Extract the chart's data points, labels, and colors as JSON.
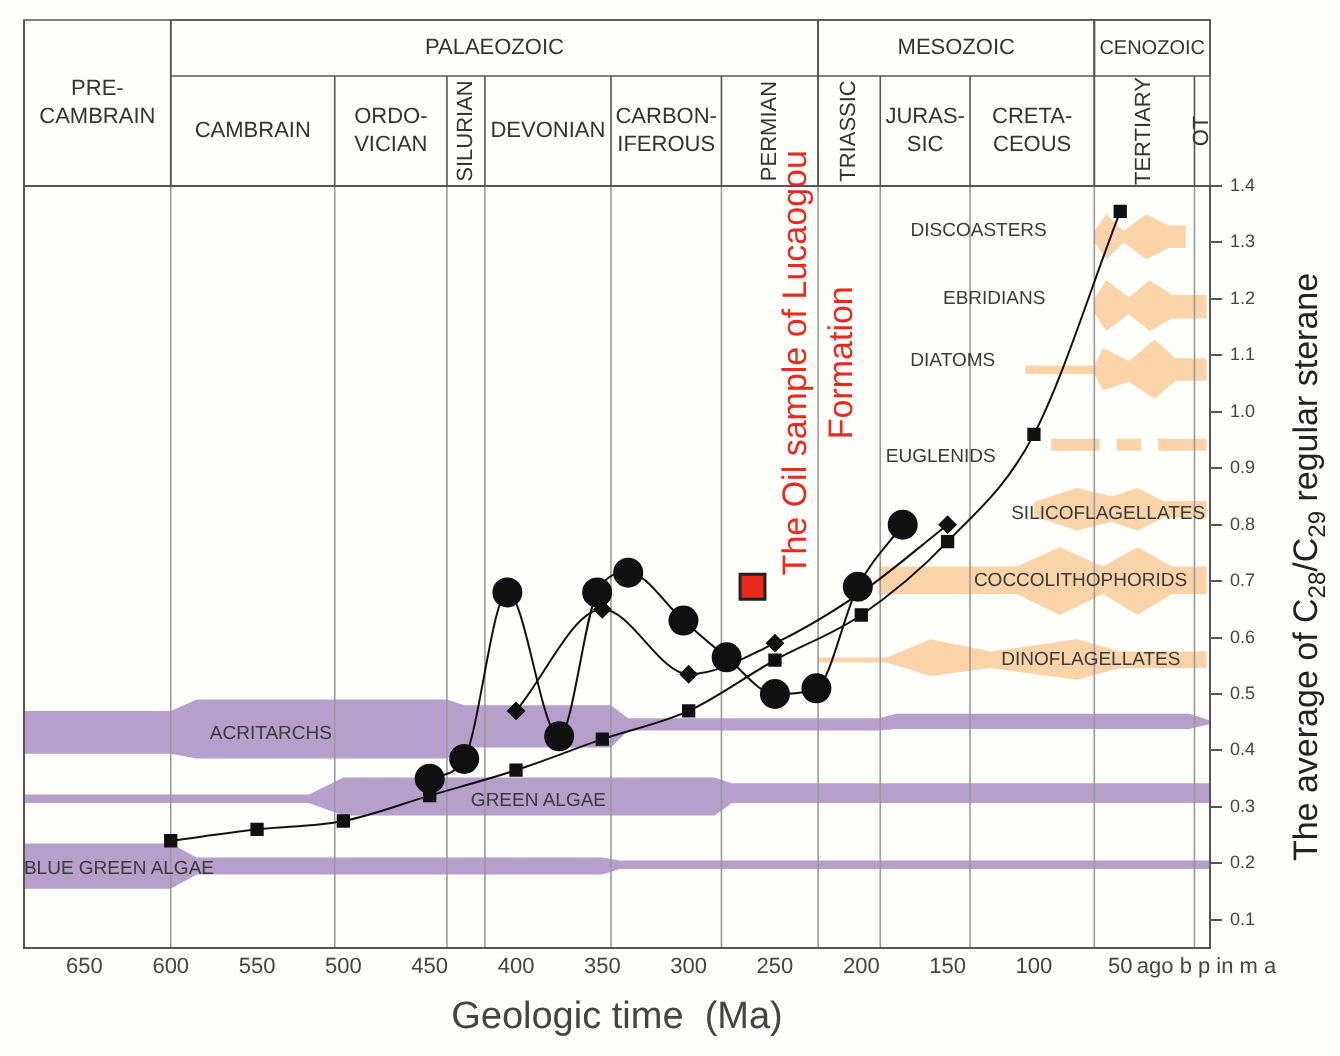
{
  "chart_data": {
    "type": "line",
    "xlabel": "Geologic time  (Ma)",
    "ylabel": "The average of C$_{28}$/C$_{29}$ regular sterane",
    "xlim": [
      685,
      -2
    ],
    "xticks": [
      650,
      600,
      550,
      500,
      450,
      400,
      350,
      300,
      250,
      200,
      150,
      100,
      50,
      {
        "value": 0,
        "label": "ago b p in m a"
      }
    ],
    "ylim": [
      0.05,
      1.4
    ],
    "yticks": [
      0.1,
      0.2,
      0.3,
      0.4,
      0.5,
      0.6,
      0.7,
      0.8,
      0.9,
      {
        "value": 1,
        "label": "1.0"
      },
      1.1,
      1.2,
      1.3,
      1.4
    ],
    "ref_lines": [
      {
        "axis": "x",
        "value": 600
      },
      {
        "axis": "x",
        "value": 505
      },
      {
        "axis": "x",
        "value": 440
      },
      {
        "axis": "x",
        "value": 418
      },
      {
        "axis": "x",
        "value": 345
      },
      {
        "axis": "x",
        "value": 281
      },
      {
        "axis": "x",
        "value": 225
      },
      {
        "axis": "x",
        "value": 189
      },
      {
        "axis": "x",
        "value": 137
      },
      {
        "axis": "x",
        "value": 65
      },
      {
        "axis": "x",
        "value": 7
      }
    ],
    "annotations": [
      "PALAEOZOIC",
      "MESOZOIC",
      "CENOZOIC",
      "PRE-\nCAMBRAIN",
      "CAMBRAIN",
      "ORDO-\nVICIAN",
      "SILURIAN",
      "DEVONIAN",
      "CARBON-\nIFEROUS",
      "PERMIAN",
      "TRIASSIC",
      "JURAS-\nSIC",
      "CRETA-\nCEOUS",
      "TERTIARY",
      "OT",
      "DISCOASTERS",
      "EBRIDIANS",
      "DIATOMS",
      "EUGLENIDS",
      "SILICOFLAGELLATES",
      "COCCOLITHOPHORIDS",
      "DINOFLAGELLATES",
      "ACRITARCHS",
      "GREEN ALGAE",
      "BLUE GREEN ALGAE"
    ],
    "series": [
      {
        "marker": "square",
        "color": "#111111",
        "x": [
          600,
          550,
          500,
          450,
          400,
          350,
          300,
          250,
          200,
          150,
          100,
          50
        ],
        "values": [
          0.24,
          0.26,
          0.275,
          0.32,
          0.365,
          0.42,
          0.47,
          0.56,
          0.64,
          0.77,
          0.96,
          1.355
        ]
      },
      {
        "marker": "diamond",
        "color": "#111111",
        "x": [
          400,
          350,
          300,
          250,
          200,
          150
        ],
        "values": [
          0.47,
          0.65,
          0.535,
          0.59,
          0.68,
          0.8
        ]
      },
      {
        "marker": "circle",
        "color": "#111111",
        "x": [
          450,
          430,
          405,
          375,
          353,
          335,
          303,
          278,
          250,
          226,
          202,
          176
        ],
        "values": [
          0.35,
          0.385,
          0.68,
          0.425,
          0.68,
          0.715,
          0.63,
          0.565,
          0.5,
          0.51,
          0.69,
          0.8
        ]
      },
      {
        "type": "scatter",
        "marker": "square",
        "name": "The Oil sample of Lucaogou Formation",
        "color": "#e8291c",
        "x": [
          263
        ],
        "values": [
          0.69
        ]
      }
    ]
  }
}
